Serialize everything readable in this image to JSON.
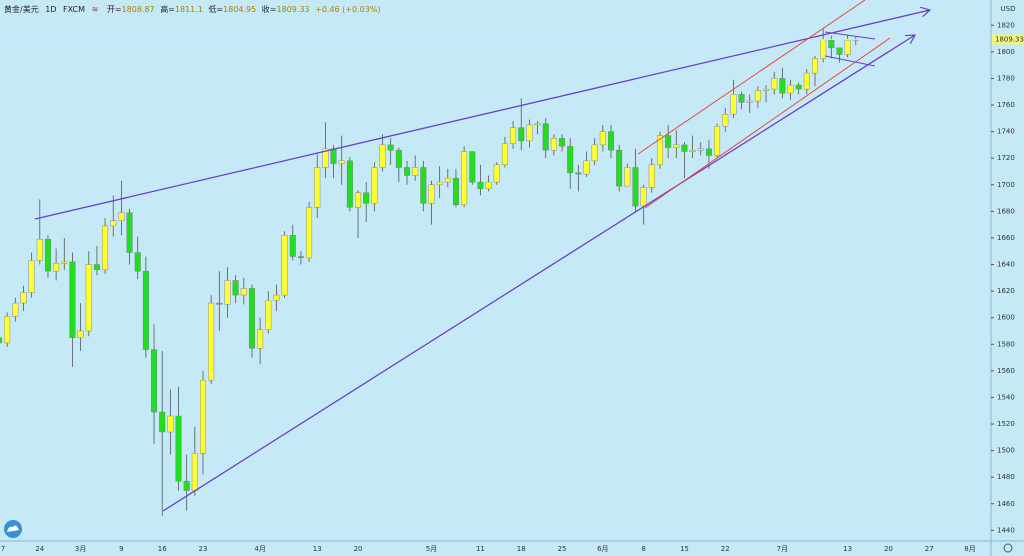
{
  "chart_data": {
    "type": "candlestick",
    "symbol": "黄金/美元",
    "interval": "1D",
    "source": "FXCM",
    "ohlc_labels": {
      "open": "开=",
      "high": "高=",
      "low": "低=",
      "close": "收="
    },
    "change": "+0.46 (+0.03%)",
    "currency": "USD",
    "up_color": "#ffff33",
    "down_color": "#22dd22",
    "categories": [
      "7",
      null,
      null,
      null,
      null,
      "24",
      null,
      null,
      null,
      null,
      "3月",
      null,
      null,
      null,
      null,
      "9",
      null,
      null,
      null,
      null,
      "16",
      null,
      null,
      null,
      null,
      "23",
      null,
      null,
      null,
      null,
      null,
      null,
      "4月",
      null,
      null,
      null,
      null,
      null,
      null,
      "13",
      null,
      null,
      null,
      null,
      "20",
      null,
      null,
      null,
      null,
      null,
      null,
      null,
      null,
      "5月",
      null,
      null,
      null,
      null,
      null,
      "11",
      null,
      null,
      null,
      null,
      "18",
      null,
      null,
      null,
      null,
      "25",
      null,
      null,
      null,
      null,
      "6月",
      null,
      null,
      null,
      null,
      "8",
      null,
      null,
      null,
      null,
      "15",
      null,
      null,
      null,
      null,
      "22",
      null,
      null,
      null,
      null,
      null,
      null,
      "7月",
      null,
      null,
      null,
      null,
      null,
      null,
      null,
      "13",
      null,
      null,
      null,
      null,
      "20",
      null,
      null,
      null,
      null,
      "27",
      null,
      null,
      null,
      null,
      "8月",
      null,
      null
    ],
    "open": [
      1585,
      1581,
      1601,
      1611,
      1619,
      1643,
      1659,
      1635,
      1641,
      1642,
      1585,
      1590,
      1640,
      1636,
      1669,
      1673,
      1679,
      1649,
      1635,
      1576,
      1529,
      1514,
      1526,
      1477,
      1470,
      1498,
      1553,
      1611,
      1610,
      1628,
      1617,
      1622,
      1577,
      1591,
      1613,
      1617,
      1662,
      1646,
      1645,
      1683,
      1713,
      1727,
      1716,
      1718,
      1683,
      1694,
      1686,
      1713,
      1730,
      1726,
      1713,
      1707,
      1713,
      1686,
      1700,
      1702,
      1705,
      1685,
      1725,
      1702,
      1697,
      1702,
      1715,
      1731,
      1743,
      1733,
      1745,
      1746,
      1726,
      1735,
      1729,
      1709,
      1708,
      1718,
      1730,
      1740,
      1726,
      1699,
      1713,
      1684,
      1698,
      1715,
      1737,
      1728,
      1730,
      1725,
      1726,
      1727,
      1722,
      1744,
      1753,
      1768,
      1762,
      1763,
      1771,
      1772,
      1780,
      1769,
      1775,
      1772,
      1784,
      1795,
      1809,
      1803,
      1798,
      1808.87,
      null,
      null,
      null,
      null,
      null,
      null,
      null,
      null,
      null,
      null,
      null,
      null,
      null,
      null,
      null,
      null
    ],
    "high": [
      1590,
      1604,
      1615,
      1624,
      1649,
      1689,
      1662,
      1652,
      1660,
      1649,
      1611,
      1650,
      1654,
      1675,
      1692,
      1703,
      1682,
      1661,
      1646,
      1595,
      1575,
      1546,
      1548,
      1497,
      1518,
      1560,
      1617,
      1635,
      1638,
      1632,
      1630,
      1625,
      1600,
      1620,
      1625,
      1665,
      1670,
      1650,
      1687,
      1723,
      1747,
      1730,
      1737,
      1721,
      1696,
      1702,
      1717,
      1738,
      1735,
      1728,
      1718,
      1722,
      1718,
      1703,
      1714,
      1712,
      1712,
      1729,
      1725,
      1715,
      1707,
      1717,
      1736,
      1748,
      1765,
      1749,
      1748,
      1750,
      1738,
      1738,
      1735,
      1715,
      1725,
      1735,
      1745,
      1745,
      1730,
      1716,
      1727,
      1700,
      1720,
      1740,
      1745,
      1741,
      1732,
      1737,
      1732,
      1734,
      1746,
      1758,
      1779,
      1770,
      1768,
      1774,
      1775,
      1785,
      1788,
      1779,
      1777,
      1787,
      1797,
      1818,
      1812,
      1803,
      1813,
      1811.1,
      null,
      null,
      null,
      null,
      null,
      null,
      null,
      null,
      null,
      null,
      null,
      null,
      null,
      null,
      null,
      null
    ],
    "low": [
      1576,
      1578,
      1597,
      1605,
      1615,
      1640,
      1630,
      1628,
      1636,
      1563,
      1575,
      1586,
      1632,
      1633,
      1661,
      1662,
      1640,
      1629,
      1570,
      1505,
      1451,
      1497,
      1470,
      1455,
      1466,
      1482,
      1550,
      1590,
      1600,
      1611,
      1610,
      1570,
      1565,
      1588,
      1605,
      1615,
      1643,
      1640,
      1642,
      1675,
      1705,
      1705,
      1700,
      1680,
      1660,
      1672,
      1680,
      1710,
      1715,
      1702,
      1700,
      1703,
      1680,
      1670,
      1690,
      1698,
      1683,
      1683,
      1700,
      1692,
      1695,
      1700,
      1713,
      1727,
      1726,
      1728,
      1738,
      1720,
      1722,
      1725,
      1697,
      1695,
      1706,
      1715,
      1725,
      1720,
      1695,
      1700,
      1680,
      1670,
      1694,
      1712,
      1720,
      1720,
      1705,
      1720,
      1722,
      1712,
      1720,
      1740,
      1750,
      1757,
      1754,
      1758,
      1762,
      1768,
      1765,
      1764,
      1768,
      1768,
      1774,
      1792,
      1795,
      1792,
      1796,
      1804.95,
      null,
      null,
      null,
      null,
      null,
      null,
      null,
      null,
      null,
      null,
      null,
      null,
      null,
      null,
      null,
      null
    ],
    "close": [
      1581,
      1601,
      1611,
      1619,
      1643,
      1659,
      1635,
      1641,
      1642,
      1585,
      1590,
      1640,
      1636,
      1669,
      1673,
      1679,
      1649,
      1635,
      1576,
      1529,
      1514,
      1526,
      1477,
      1470,
      1498,
      1553,
      1611,
      1610,
      1628,
      1617,
      1622,
      1577,
      1591,
      1613,
      1617,
      1662,
      1646,
      1645,
      1683,
      1713,
      1727,
      1716,
      1718,
      1683,
      1694,
      1686,
      1713,
      1730,
      1726,
      1713,
      1707,
      1713,
      1686,
      1700,
      1702,
      1705,
      1685,
      1725,
      1702,
      1697,
      1702,
      1715,
      1731,
      1743,
      1733,
      1745,
      1746,
      1726,
      1735,
      1729,
      1709,
      1708,
      1718,
      1730,
      1740,
      1726,
      1699,
      1713,
      1684,
      1698,
      1715,
      1737,
      1728,
      1730,
      1725,
      1726,
      1727,
      1722,
      1744,
      1753,
      1768,
      1762,
      1763,
      1771,
      1772,
      1780,
      1769,
      1775,
      1772,
      1784,
      1795,
      1809,
      1803,
      1798,
      1808.87,
      1809.33,
      null,
      null,
      null,
      null,
      null,
      null,
      null,
      null,
      null,
      null,
      null,
      null,
      null,
      null,
      null,
      null
    ],
    "ylim": [
      1432,
      1839
    ],
    "yticks": [
      1440,
      1460,
      1480,
      1500,
      1520,
      1540,
      1560,
      1580,
      1600,
      1620,
      1640,
      1660,
      1680,
      1700,
      1720,
      1740,
      1760,
      1780,
      1800,
      1820
    ]
  }
}
